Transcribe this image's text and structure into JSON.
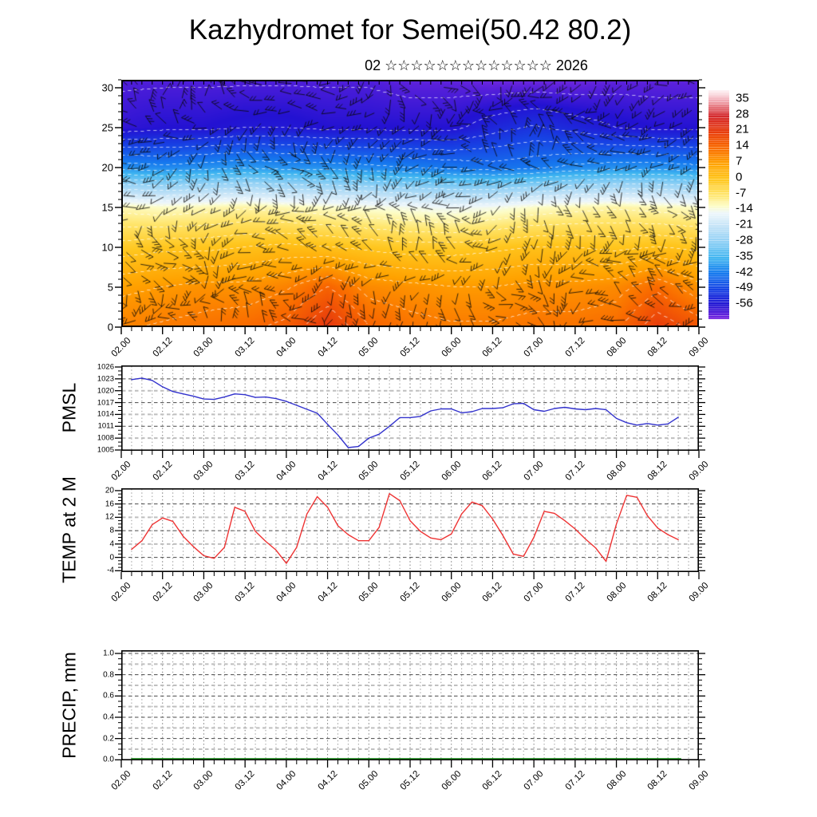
{
  "title": "Kazhydromet for Semei(50.42 80.2)",
  "subtitle": "02 ☆☆☆☆☆☆☆☆☆☆☆☆☆ 2026",
  "x_axis": {
    "labels": [
      "02.00",
      "02.12",
      "03.00",
      "03.12",
      "04.00",
      "04.12",
      "05.00",
      "05.12",
      "06.00",
      "06.12",
      "07.00",
      "07.12",
      "08.00",
      "08.12",
      "09.00"
    ],
    "t_range": [
      2,
      9
    ],
    "minor_step_hours": 3
  },
  "chart_data": [
    {
      "id": "cross_section",
      "type": "heatmap",
      "description": "time-height temperature cross-section with dense black wind barbs overlay",
      "y_ticks": [
        0,
        5,
        10,
        15,
        20,
        25,
        30
      ],
      "y_range": [
        0,
        31
      ],
      "heights": [
        31,
        25,
        20,
        15,
        10,
        5,
        0
      ],
      "grid_temps": [
        [
          -60,
          -60,
          -60,
          -60,
          -60,
          -60,
          -60,
          -61,
          -61,
          -62,
          -62,
          -62,
          -61,
          -61,
          -61
        ],
        [
          -58,
          -57,
          -57,
          -56,
          -56,
          -57,
          -57,
          -57,
          -57,
          -54,
          -52,
          -54,
          -56,
          -57,
          -57
        ],
        [
          -40,
          -41,
          -40,
          -39,
          -40,
          -40,
          -41,
          -42,
          -43,
          -44,
          -43,
          -41,
          -40,
          -40,
          -41
        ],
        [
          -12,
          -13,
          -12,
          -11,
          -12,
          -13,
          -14,
          -15,
          -16,
          -15,
          -13,
          -12,
          -11,
          -12,
          -13
        ],
        [
          -2,
          -1,
          -1,
          0,
          1,
          0,
          -1,
          -2,
          -2,
          -1,
          0,
          0,
          -1,
          0,
          -1
        ],
        [
          6,
          7,
          8,
          8,
          10,
          14,
          9,
          8,
          7,
          7,
          8,
          8,
          9,
          13,
          8
        ],
        [
          10,
          11,
          12,
          13,
          15,
          21,
          14,
          12,
          11,
          11,
          12,
          12,
          13,
          20,
          16
        ]
      ],
      "overlay": "dense black wind barbs",
      "colorbar": {
        "labels": [
          35,
          28,
          21,
          14,
          7,
          0,
          -7,
          -14,
          -21,
          -28,
          -35,
          -42,
          -49,
          -56
        ],
        "value_range": [
          38.5,
          -63
        ],
        "palette": [
          {
            "t": 38,
            "c": "#fdeef1"
          },
          {
            "t": 34,
            "c": "#f2aeb8"
          },
          {
            "t": 27,
            "c": "#d42a2e"
          },
          {
            "t": 20,
            "c": "#e83c0c"
          },
          {
            "t": 13,
            "c": "#f96a00"
          },
          {
            "t": 6,
            "c": "#ffa200"
          },
          {
            "t": -1,
            "c": "#ffc61e"
          },
          {
            "t": -8,
            "c": "#ffe66e"
          },
          {
            "t": -13,
            "c": "#fdfdc8"
          },
          {
            "t": -16,
            "c": "#eef7fb"
          },
          {
            "t": -22,
            "c": "#c3e3f7"
          },
          {
            "t": -29,
            "c": "#8fd0f5"
          },
          {
            "t": -36,
            "c": "#3fb5f0"
          },
          {
            "t": -43,
            "c": "#1678ee"
          },
          {
            "t": -50,
            "c": "#1742e4"
          },
          {
            "t": -57,
            "c": "#2312d2"
          },
          {
            "t": -63,
            "c": "#7d2ae0"
          }
        ]
      }
    },
    {
      "id": "pmsl",
      "type": "line",
      "ylabel": "PMSL",
      "color": "#3232cd",
      "y_ticks": [
        1005,
        1008,
        1011,
        1014,
        1017,
        1020,
        1023,
        1026
      ],
      "y_range": [
        1004.8,
        1026.4
      ],
      "t_start": 2.125,
      "t_step": 0.125,
      "values": [
        1022.8,
        1023.2,
        1022.6,
        1021.0,
        1019.8,
        1019.2,
        1018.6,
        1017.9,
        1017.8,
        1018.4,
        1019.2,
        1019.0,
        1018.3,
        1018.4,
        1018.0,
        1017.3,
        1016.3,
        1015.3,
        1014.3,
        1011.5,
        1008.8,
        1005.6,
        1005.9,
        1008.0,
        1009.0,
        1011.0,
        1013.2,
        1013.2,
        1013.5,
        1014.9,
        1015.4,
        1015.4,
        1014.4,
        1014.7,
        1015.5,
        1015.5,
        1015.7,
        1016.7,
        1016.8,
        1015.2,
        1014.8,
        1015.5,
        1015.8,
        1015.4,
        1015.2,
        1015.5,
        1015.2,
        1013.0,
        1011.9,
        1011.3,
        1011.7,
        1011.3,
        1011.6,
        1013.3
      ]
    },
    {
      "id": "temp2m",
      "type": "line",
      "ylabel": "TEMP at 2 M",
      "color": "#ee3333",
      "y_ticks": [
        -4,
        0,
        4,
        8,
        12,
        16,
        20
      ],
      "y_range": [
        -4.4,
        20.7
      ],
      "t_start": 2.125,
      "t_step": 0.125,
      "values": [
        2.4,
        5.0,
        9.8,
        11.8,
        10.8,
        6.3,
        3.2,
        0.5,
        -0.3,
        3.0,
        15.0,
        13.8,
        7.8,
        4.8,
        2.2,
        -1.8,
        3.0,
        13.0,
        18.2,
        15.0,
        9.5,
        6.8,
        5.0,
        5.0,
        9.0,
        19.1,
        17.0,
        11.0,
        7.8,
        5.8,
        5.3,
        7.0,
        13.0,
        16.6,
        15.5,
        11.5,
        6.5,
        1.0,
        0.3,
        6.0,
        13.8,
        13.2,
        11.0,
        8.5,
        5.5,
        2.8,
        -1.2,
        10.0,
        18.6,
        18.0,
        12.5,
        8.8,
        6.8,
        5.3
      ]
    },
    {
      "id": "precip",
      "type": "line",
      "ylabel": "PRECIP, mm",
      "color": "#0a7a0a",
      "y_ticks": [
        "0.0",
        "0.2",
        "0.4",
        "0.6",
        "0.8",
        "1.0"
      ],
      "y_range": [
        -0.005,
        1.03
      ],
      "t_start": 2.125,
      "t_step": 0.125,
      "constant_value": 0
    }
  ]
}
